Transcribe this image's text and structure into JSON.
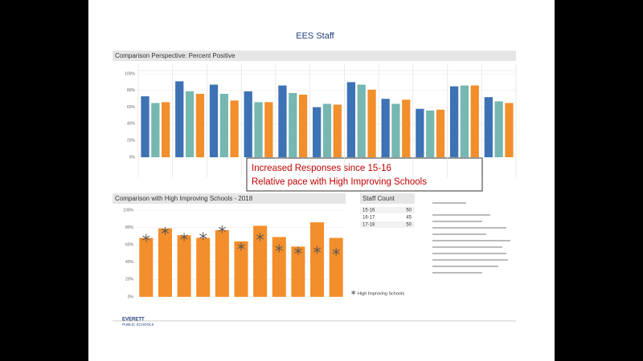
{
  "title": "EES Staff",
  "chart_data": [
    {
      "type": "bar",
      "title": "Comparison Perspective: Percent Positive",
      "categories": [
        null,
        null,
        null,
        null,
        null,
        null,
        null,
        null,
        null,
        null,
        null
      ],
      "series": [
        {
          "color": "#3d72b4",
          "values": [
            73,
            91,
            87,
            79,
            86,
            60,
            90,
            70,
            58,
            85,
            72
          ]
        },
        {
          "color": "#76b7b2",
          "values": [
            65,
            79,
            76,
            66,
            77,
            64,
            87,
            64,
            56,
            86,
            67
          ]
        },
        {
          "color": "#f28e2b",
          "values": [
            66,
            76,
            68,
            66,
            75,
            63,
            81,
            69,
            57,
            86,
            65
          ]
        }
      ],
      "ylim": [
        0,
        100
      ],
      "yticks": [
        {
          "value": 0,
          "label": "0%"
        },
        {
          "value": 20,
          "label": "20%"
        },
        {
          "value": 40,
          "label": "40%"
        },
        {
          "value": 60,
          "label": "60%"
        },
        {
          "value": 80,
          "label": "80%"
        },
        {
          "value": 100,
          "label": "100%"
        }
      ],
      "grid": true
    },
    {
      "type": "bar",
      "title": "Comparison with High Improving Schools - 2018",
      "categories": [
        null,
        null,
        null,
        null,
        null,
        null,
        null,
        null,
        null,
        null,
        null
      ],
      "series": [
        {
          "color": "#f28e2b",
          "values": [
            68,
            79,
            71,
            68,
            77,
            64,
            82,
            69,
            58,
            86,
            68
          ]
        },
        {
          "name": "High Improving Schools",
          "color": "#555555",
          "marker": "asterisk",
          "values": [
            68,
            76,
            69,
            70,
            78,
            58,
            69,
            56,
            53,
            54,
            52
          ]
        }
      ],
      "ylim": [
        0,
        100
      ],
      "yticks": [
        {
          "value": 0,
          "label": "0%"
        },
        {
          "value": 20,
          "label": "20%"
        },
        {
          "value": 40,
          "label": "40%"
        },
        {
          "value": 60,
          "label": "60%"
        },
        {
          "value": 80,
          "label": "80%"
        },
        {
          "value": 100,
          "label": "100%"
        }
      ],
      "grid": true
    }
  ],
  "annotation": [
    "Increased Responses since 15-16",
    "Relative pace with High Improving Schools"
  ],
  "staff_count": {
    "title": "Staff Count",
    "rows": [
      [
        "15-16",
        "50"
      ],
      [
        "16-17",
        "45"
      ],
      [
        "17-18",
        "50"
      ]
    ]
  },
  "logo": [
    "EVERETT",
    "PUBLIC SCHOOLS"
  ]
}
